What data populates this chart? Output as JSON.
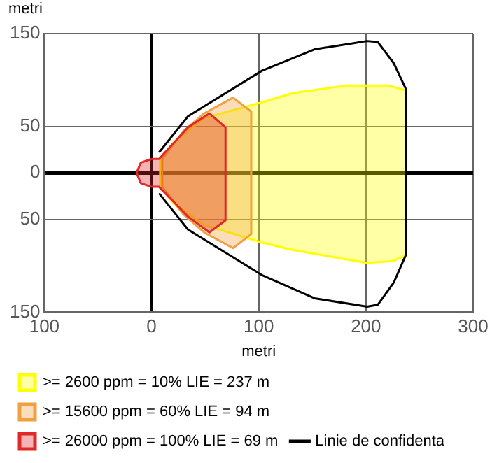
{
  "chart_data": {
    "type": "area",
    "xlabel": "metri",
    "ylabel": "metri",
    "legend": "bottom",
    "marker": "none",
    "grid": true,
    "xlim": [
      -100,
      300
    ],
    "xticks": [
      {
        "value": -100,
        "label": "100"
      },
      0,
      100,
      200,
      300
    ],
    "ylim": [
      -150,
      150
    ],
    "yticks": [
      {
        "value": -150,
        "label": "150"
      },
      {
        "value": -50,
        "label": "50"
      },
      0,
      50,
      150
    ],
    "series": [
      {
        "name": ">= 2600 ppm = 10% LIE = 237 m",
        "color": "#ffff00",
        "x": [
          8,
          20,
          49,
          103,
          132,
          181,
          221,
          237,
          237,
          225,
          201,
          132,
          103,
          49,
          20,
          8,
          8
        ],
        "values": [
          15,
          32,
          59,
          76,
          86,
          94,
          94,
          89,
          -89,
          -95,
          -97,
          -83,
          -75,
          -56,
          -32,
          -15,
          15
        ]
      },
      {
        "name": ">= 15600 ppm = 60% LIE = 94 m",
        "color": "#f0a040",
        "x": [
          10,
          30,
          49,
          76,
          93,
          93,
          76,
          49,
          30,
          10,
          10
        ],
        "values": [
          15,
          45,
          64,
          81,
          66,
          -66,
          -81,
          -64,
          -45,
          -15,
          15
        ]
      },
      {
        "name": ">= 26000 ppm = 100% LIE = 69 m",
        "color": "#e02828",
        "x": [
          0,
          -10,
          -14,
          -10,
          0,
          7,
          34,
          54,
          69,
          69,
          54,
          34,
          7,
          0
        ],
        "values": [
          15,
          11,
          0,
          -11,
          -15,
          -15,
          -47,
          -64,
          -51,
          49,
          64,
          49,
          15,
          15
        ]
      },
      {
        "name": "Linie de confidenta",
        "type": "line",
        "color": "#000000",
        "x": [
          7,
          34,
          103,
          152,
          201,
          211,
          226,
          237,
          237,
          226,
          211,
          201,
          152,
          103,
          34,
          7
        ],
        "values": [
          22,
          61,
          110,
          133,
          142,
          141,
          118,
          91,
          -89,
          -118,
          -142,
          -144,
          -135,
          -110,
          -61,
          -22
        ]
      }
    ]
  }
}
